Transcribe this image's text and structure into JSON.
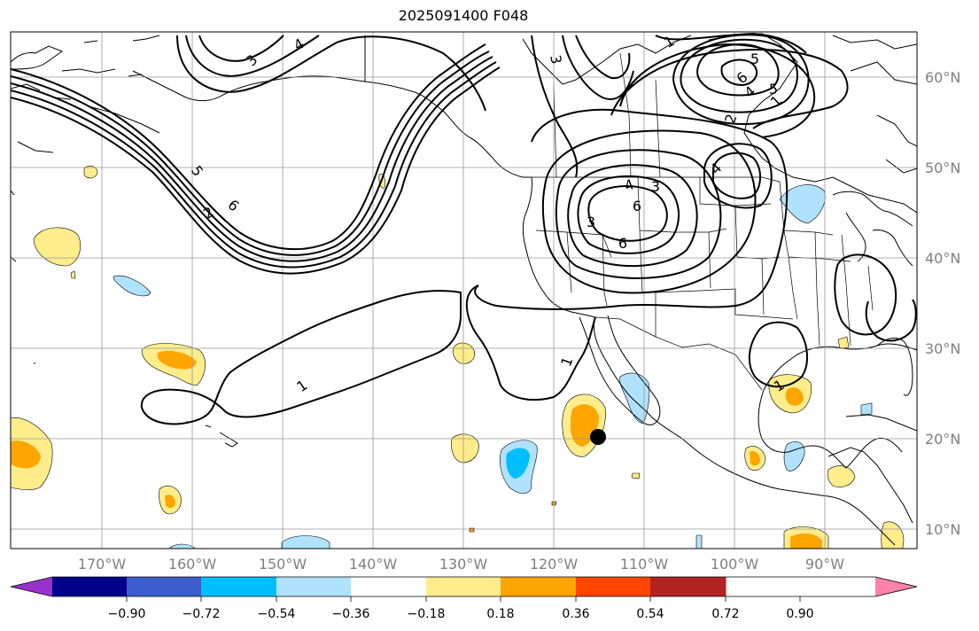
{
  "title": "2025091400 F048",
  "lon_labels": [
    "170°W",
    "160°W",
    "150°W",
    "140°W",
    "130°W",
    "120°W",
    "110°W",
    "100°W",
    "90°W"
  ],
  "lat_labels": [
    "60°N",
    "50°N",
    "40°N",
    "30°N",
    "20°N",
    "10°N"
  ],
  "colorbar": {
    "tick_labels": [
      "−0.90",
      "−0.72",
      "−0.54",
      "−0.36",
      "−0.18",
      "0.18",
      "0.36",
      "0.54",
      "0.72",
      "0.90"
    ],
    "colors": [
      "#9932cc",
      "#00008b",
      "#3a5fcd",
      "#00bfff",
      "#b0e2ff",
      "#ffffff",
      "#ffec8b",
      "#ffa500",
      "#ff4500",
      "#b22222",
      "#ff82ab"
    ]
  },
  "contour_labels": [
    "1",
    "1",
    "1",
    "1",
    "1",
    "2",
    "2",
    "3",
    "3",
    "3",
    "3",
    "4",
    "4",
    "4",
    "4",
    "5",
    "5",
    "5",
    "6",
    "6",
    "6",
    "6"
  ],
  "marker": {
    "name": "storm-center",
    "lon": -115.5,
    "lat": 20.3
  }
}
